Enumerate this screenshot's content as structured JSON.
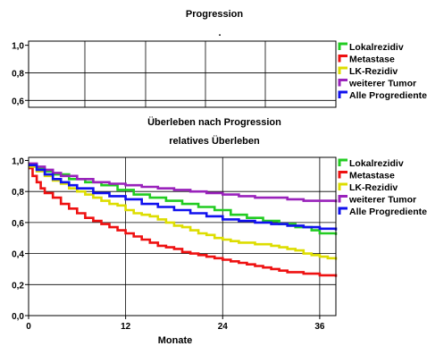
{
  "chart_data": [
    {
      "type": "line",
      "title": "Progression",
      "subtitle": ".",
      "y_ticks": [
        "1,0",
        "0,8",
        "0,6"
      ],
      "ylim": [
        0.55,
        1.03
      ],
      "grid": true,
      "legend_position": "right",
      "legend": [
        {
          "name": "Lokalrezidiv",
          "color": "#22cc22"
        },
        {
          "name": "Metastase",
          "color": "#ee1111"
        },
        {
          "name": "LK-Rezidiv",
          "color": "#dddd00"
        },
        {
          "name": "weiterer Tumor",
          "color": "#9922bb"
        },
        {
          "name": "Alle Progredienten",
          "color": "#1111ee"
        }
      ]
    },
    {
      "type": "line",
      "step": true,
      "title": "Überleben nach Progression",
      "subtitle": "relatives Überleben",
      "xlabel": "Monate",
      "ylabel": "",
      "xlim": [
        0,
        38
      ],
      "ylim": [
        0,
        1.02
      ],
      "x_ticks": [
        "0",
        "12",
        "24",
        "36"
      ],
      "y_ticks": [
        "1,0",
        "0,8",
        "0,6",
        "0,4",
        "0,2",
        "0,0"
      ],
      "grid": true,
      "legend_position": "right",
      "series": [
        {
          "name": "Lokalrezidiv",
          "color": "#22cc22",
          "x": [
            0,
            1,
            2,
            3,
            5,
            7,
            9,
            11,
            13,
            15,
            17,
            19,
            21,
            23,
            25,
            27,
            29,
            31,
            33,
            35,
            36,
            38
          ],
          "y": [
            0.97,
            0.95,
            0.93,
            0.91,
            0.88,
            0.86,
            0.84,
            0.81,
            0.78,
            0.76,
            0.74,
            0.72,
            0.7,
            0.68,
            0.65,
            0.63,
            0.61,
            0.59,
            0.57,
            0.55,
            0.53,
            0.52
          ]
        },
        {
          "name": "Metastase",
          "color": "#ee1111",
          "x": [
            0,
            0.5,
            1,
            1.5,
            2,
            3,
            4,
            5,
            6,
            7,
            8,
            9,
            10,
            11,
            12,
            13,
            14,
            15,
            16,
            17,
            18,
            19,
            20,
            21,
            22,
            23,
            24,
            25,
            26,
            27,
            28,
            29,
            30,
            31,
            32,
            33,
            34,
            35,
            36,
            37,
            38
          ],
          "y": [
            0.95,
            0.9,
            0.86,
            0.82,
            0.79,
            0.76,
            0.72,
            0.69,
            0.66,
            0.63,
            0.61,
            0.59,
            0.57,
            0.55,
            0.53,
            0.51,
            0.49,
            0.47,
            0.45,
            0.44,
            0.43,
            0.41,
            0.4,
            0.39,
            0.38,
            0.37,
            0.36,
            0.35,
            0.34,
            0.33,
            0.32,
            0.31,
            0.3,
            0.29,
            0.28,
            0.28,
            0.27,
            0.27,
            0.26,
            0.26,
            0.25
          ]
        },
        {
          "name": "LK-Rezidiv",
          "color": "#dddd00",
          "x": [
            0,
            1,
            2,
            3,
            4,
            5,
            6,
            7,
            8,
            9,
            10,
            11,
            12,
            13,
            14,
            15,
            16,
            17,
            18,
            19,
            20,
            21,
            22,
            23,
            24,
            25,
            26,
            27,
            28,
            29,
            30,
            31,
            32,
            33,
            34,
            35,
            36,
            37,
            38
          ],
          "y": [
            0.96,
            0.93,
            0.9,
            0.87,
            0.85,
            0.82,
            0.8,
            0.78,
            0.76,
            0.74,
            0.72,
            0.71,
            0.68,
            0.66,
            0.65,
            0.64,
            0.62,
            0.6,
            0.58,
            0.57,
            0.55,
            0.53,
            0.52,
            0.5,
            0.49,
            0.48,
            0.47,
            0.47,
            0.46,
            0.46,
            0.45,
            0.44,
            0.43,
            0.42,
            0.4,
            0.39,
            0.38,
            0.37,
            0.36
          ]
        },
        {
          "name": "weiterer Tumor",
          "color": "#9922bb",
          "x": [
            0,
            1,
            2,
            3,
            4,
            6,
            8,
            10,
            12,
            14,
            16,
            18,
            20,
            22,
            24,
            26,
            28,
            30,
            32,
            34,
            36,
            38
          ],
          "y": [
            0.98,
            0.96,
            0.94,
            0.92,
            0.9,
            0.88,
            0.86,
            0.85,
            0.84,
            0.83,
            0.82,
            0.81,
            0.8,
            0.79,
            0.78,
            0.77,
            0.76,
            0.76,
            0.75,
            0.74,
            0.74,
            0.73
          ]
        },
        {
          "name": "Alle Progredienten",
          "color": "#1111ee",
          "x": [
            0,
            1,
            2,
            3,
            4,
            5,
            6,
            8,
            10,
            12,
            14,
            16,
            18,
            20,
            22,
            24,
            26,
            28,
            30,
            32,
            34,
            36,
            38
          ],
          "y": [
            0.97,
            0.94,
            0.91,
            0.88,
            0.86,
            0.84,
            0.82,
            0.79,
            0.77,
            0.75,
            0.72,
            0.7,
            0.68,
            0.66,
            0.64,
            0.62,
            0.61,
            0.6,
            0.59,
            0.58,
            0.57,
            0.56,
            0.55
          ]
        }
      ]
    }
  ]
}
